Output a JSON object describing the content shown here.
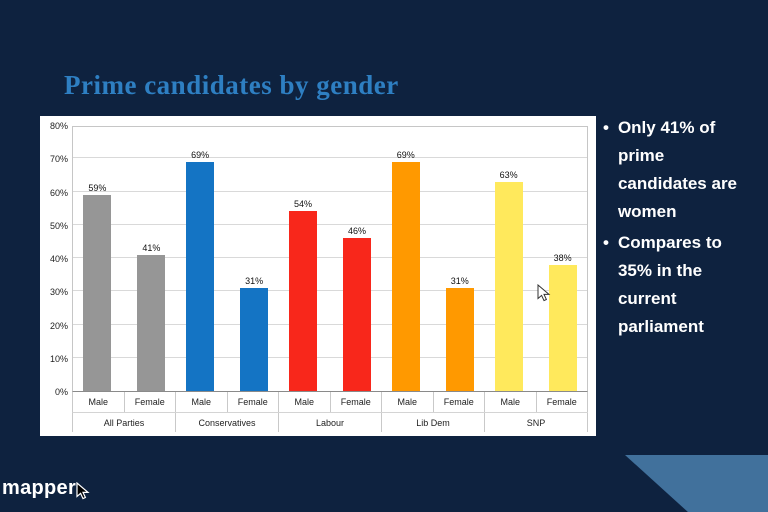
{
  "slide": {
    "title": "Prime candidates by gender",
    "bullets": [
      "Only 41% of prime candidates are women",
      "Compares to 35% in the current parliament"
    ],
    "logo_text": "mapper",
    "colors": {
      "background": "#0e223f",
      "title": "#2e7fc2",
      "accent_shape": "#41719c"
    }
  },
  "chart_data": {
    "type": "bar",
    "title": "Prime candidates by gender",
    "categories": [
      "All Parties",
      "Conservatives",
      "Labour",
      "Lib Dem",
      "SNP"
    ],
    "subcategories": [
      "Male",
      "Female"
    ],
    "series": [
      {
        "name": "All Parties",
        "color": "#969696",
        "values": [
          59,
          41
        ]
      },
      {
        "name": "Conservatives",
        "color": "#1474c4",
        "values": [
          69,
          31
        ]
      },
      {
        "name": "Labour",
        "color": "#f8271b",
        "values": [
          54,
          46
        ]
      },
      {
        "name": "Lib Dem",
        "color": "#ff9900",
        "values": [
          69,
          31
        ]
      },
      {
        "name": "SNP",
        "color": "#ffe95c",
        "values": [
          63,
          38
        ]
      }
    ],
    "value_suffix": "%",
    "ylim": [
      0,
      80
    ],
    "ytick_step": 10,
    "grid": true,
    "legend": "none"
  }
}
